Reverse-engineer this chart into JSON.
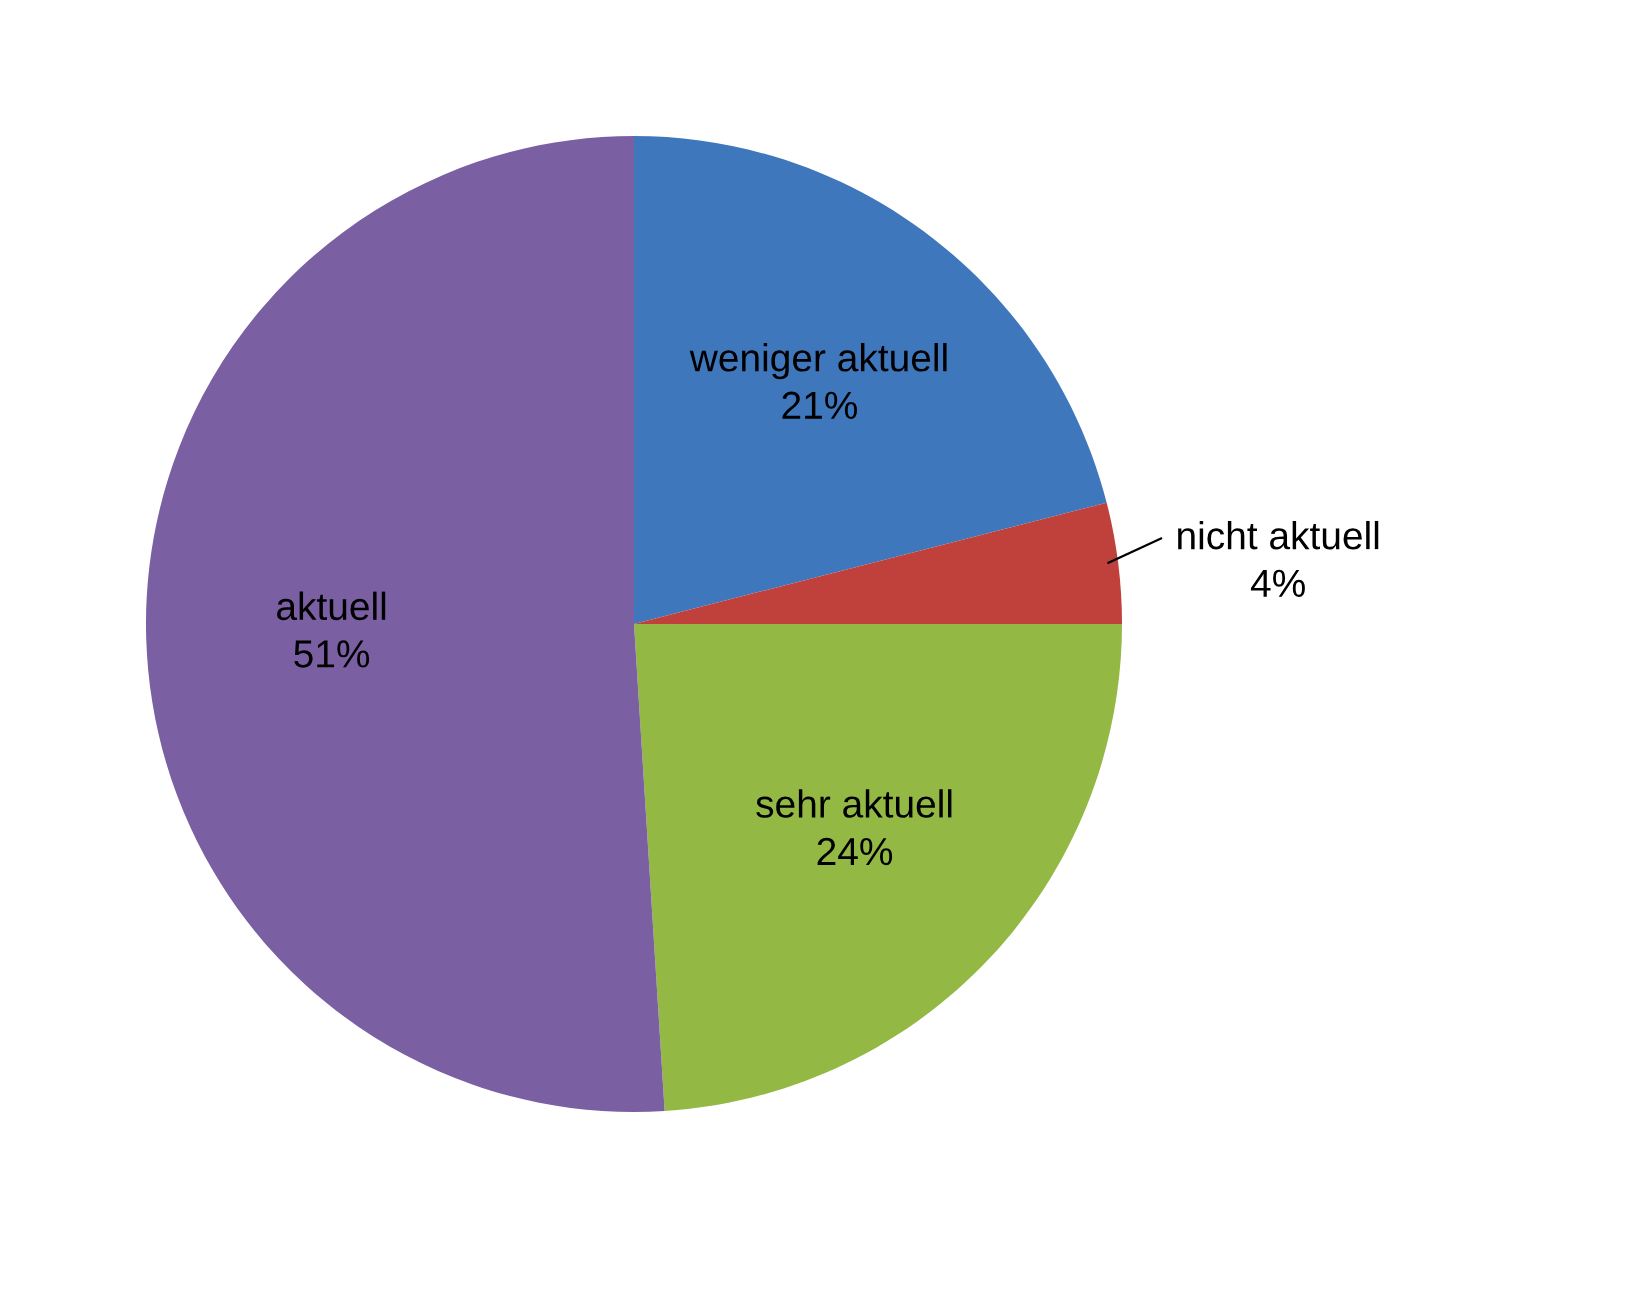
{
  "chart_data": {
    "type": "pie",
    "categories": [
      "weniger aktuell",
      "nicht aktuell",
      "sehr aktuell",
      "aktuell"
    ],
    "values": [
      21,
      4,
      24,
      51
    ],
    "value_labels": [
      "21%",
      "4%",
      "24%",
      "51%"
    ],
    "colors": [
      "#3f77bd",
      "#c0403c",
      "#93b844",
      "#7b5fa3"
    ],
    "legend": false
  }
}
